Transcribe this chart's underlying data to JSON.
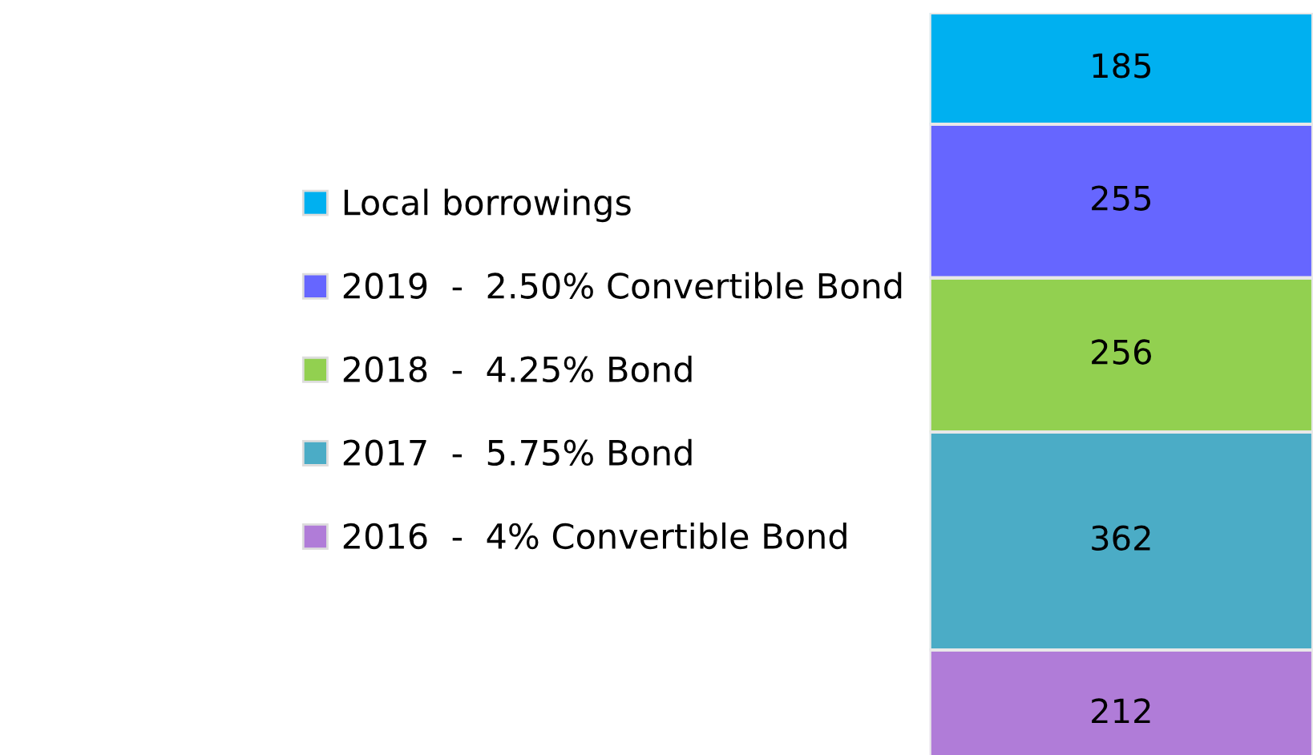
{
  "chart_data": {
    "type": "bar",
    "stacked": true,
    "categories": [
      null
    ],
    "series": [
      {
        "name": "2016  -  4% Convertible Bond",
        "color": "#b07cd8",
        "values": [
          212
        ]
      },
      {
        "name": "2017  -  5.75% Bond",
        "color": "#4bacc6",
        "values": [
          362
        ]
      },
      {
        "name": "2018  -  4.25% Bond",
        "color": "#92d050",
        "values": [
          256
        ]
      },
      {
        "name": "2019  -  2.50% Convertible Bond",
        "color": "#6666ff",
        "values": [
          255
        ]
      },
      {
        "name": "Local borrowings",
        "color": "#00b0f0",
        "values": [
          185
        ]
      }
    ],
    "data_labels": true,
    "legend": "left"
  }
}
